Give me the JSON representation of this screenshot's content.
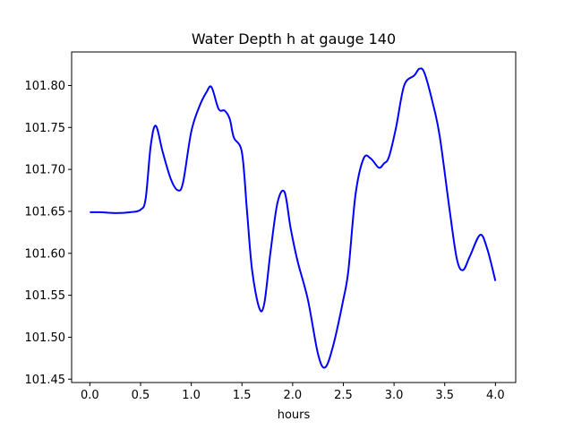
{
  "chart_data": {
    "type": "line",
    "title": "Water Depth h at gauge 140",
    "xlabel": "hours",
    "ylabel": "",
    "xlim": [
      -0.18,
      4.2
    ],
    "ylim": [
      101.446,
      101.84
    ],
    "xticks": [
      0.0,
      0.5,
      1.0,
      1.5,
      2.0,
      2.5,
      3.0,
      3.5,
      4.0
    ],
    "xtick_labels": [
      "0.0",
      "0.5",
      "1.0",
      "1.5",
      "2.0",
      "2.5",
      "3.0",
      "3.5",
      "4.0"
    ],
    "yticks": [
      101.45,
      101.5,
      101.55,
      101.6,
      101.65,
      101.7,
      101.75,
      101.8
    ],
    "ytick_labels": [
      "101.45",
      "101.50",
      "101.55",
      "101.60",
      "101.65",
      "101.70",
      "101.75",
      "101.80"
    ],
    "grid": false,
    "series": [
      {
        "color": "#0000ff",
        "x": [
          0.0,
          0.1,
          0.25,
          0.4,
          0.5,
          0.55,
          0.6,
          0.65,
          0.72,
          0.8,
          0.87,
          0.92,
          1.0,
          1.08,
          1.15,
          1.2,
          1.27,
          1.33,
          1.38,
          1.42,
          1.5,
          1.55,
          1.6,
          1.67,
          1.72,
          1.78,
          1.85,
          1.92,
          1.98,
          2.05,
          2.15,
          2.25,
          2.32,
          2.4,
          2.5,
          2.55,
          2.62,
          2.7,
          2.77,
          2.85,
          2.9,
          2.95,
          3.02,
          3.1,
          3.2,
          3.25,
          3.3,
          3.38,
          3.45,
          3.55,
          3.62,
          3.68,
          3.75,
          3.85,
          3.92,
          4.0
        ],
        "y": [
          101.649,
          101.649,
          101.648,
          101.649,
          101.652,
          101.665,
          101.728,
          101.752,
          101.72,
          101.688,
          101.675,
          101.685,
          101.745,
          101.775,
          101.792,
          101.798,
          101.772,
          101.77,
          101.76,
          101.738,
          101.72,
          101.65,
          101.58,
          101.535,
          101.54,
          101.6,
          101.66,
          101.673,
          101.63,
          101.59,
          101.545,
          101.48,
          101.464,
          101.49,
          101.545,
          101.58,
          101.67,
          101.713,
          101.713,
          101.702,
          101.707,
          101.715,
          101.75,
          101.8,
          101.812,
          101.82,
          101.815,
          101.78,
          101.74,
          101.65,
          101.593,
          101.58,
          101.597,
          101.622,
          101.605,
          101.567
        ]
      }
    ]
  }
}
